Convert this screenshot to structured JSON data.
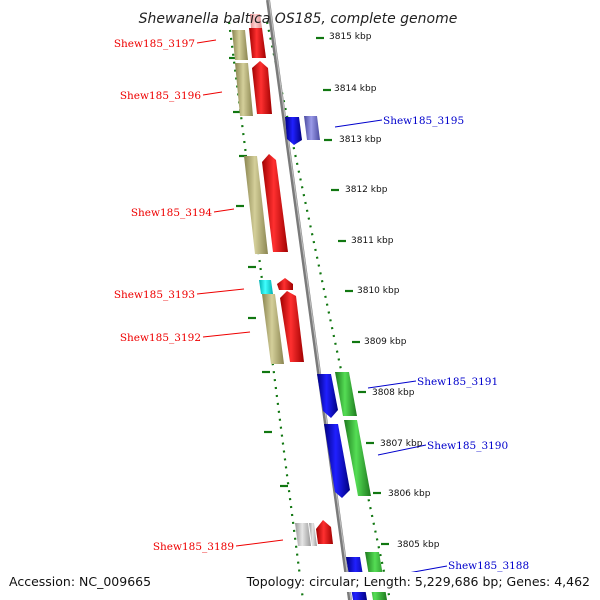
{
  "title": "Shewanella baltica OS185, complete genome",
  "accession": "Accession: NC_009665",
  "summary": "Topology: circular; Length: 5,229,686 bp; Genes: 4,462",
  "scale_labels": [
    "3815 kbp",
    "3814 kbp",
    "3813 kbp",
    "3812 kbp",
    "3811 kbp",
    "3810 kbp",
    "3809 kbp",
    "3808 kbp",
    "3807 kbp",
    "3806 kbp",
    "3805 kbp"
  ],
  "genes": [
    {
      "label": "Shew185_3197",
      "strand": "minus",
      "color": "#ee0000"
    },
    {
      "label": "Shew185_3196",
      "strand": "minus",
      "color": "#ee0000"
    },
    {
      "label": "Shew185_3195",
      "strand": "plus",
      "color": "#0000cc"
    },
    {
      "label": "Shew185_3194",
      "strand": "minus",
      "color": "#ee0000"
    },
    {
      "label": "Shew185_3193",
      "strand": "minus",
      "color": "#ee0000"
    },
    {
      "label": "Shew185_3192",
      "strand": "minus",
      "color": "#ee0000"
    },
    {
      "label": "Shew185_3191",
      "strand": "plus",
      "color": "#0000cc"
    },
    {
      "label": "Shew185_3190",
      "strand": "plus",
      "color": "#0000cc"
    },
    {
      "label": "Shew185_3189",
      "strand": "minus",
      "color": "#ee0000"
    },
    {
      "label": "Shew185_3188",
      "strand": "plus",
      "color": "#0000cc"
    }
  ],
  "colors": {
    "minus_label": "#ee0000",
    "plus_label": "#0000cc",
    "minus_cds": "#ee0000",
    "plus_cds": "#0000dd",
    "plus_feature": "#33bb33",
    "minus_feature": "#b5b07a",
    "tick": "#117711",
    "backbone": "#888888"
  }
}
